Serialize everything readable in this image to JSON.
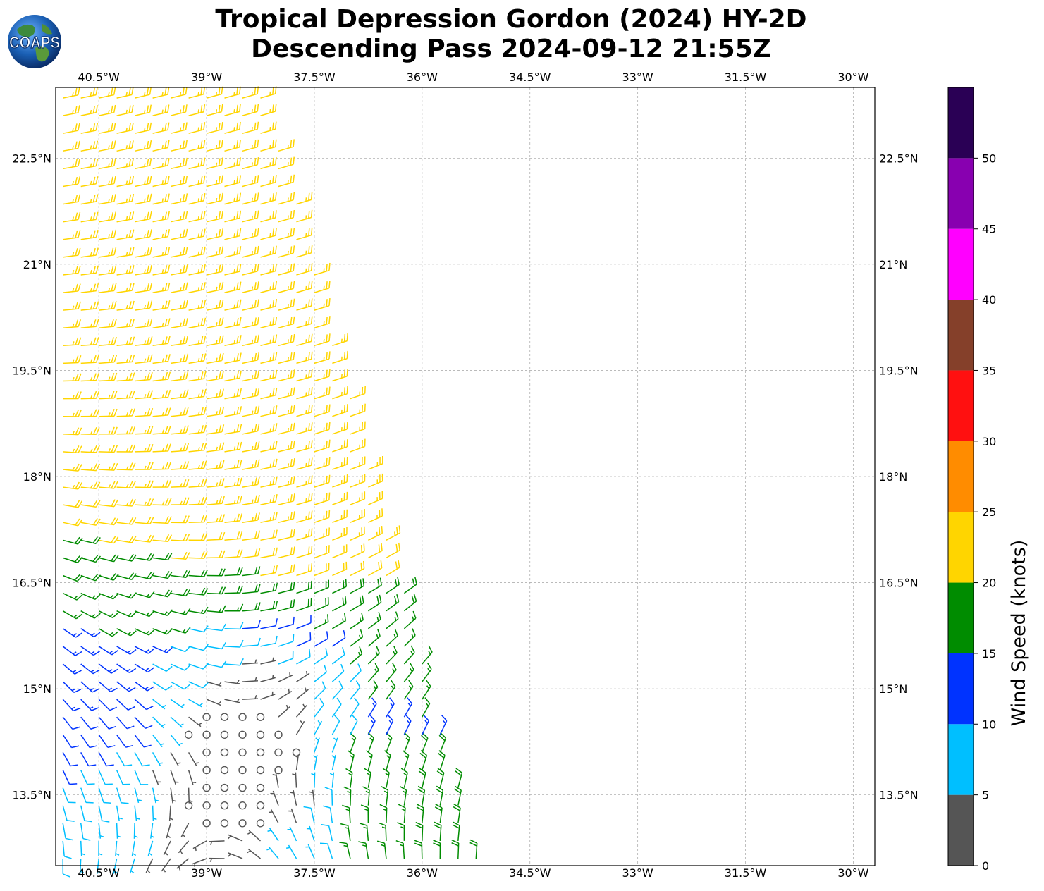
{
  "title": {
    "line1": "Tropical Depression Gordon (2024) HY-2D",
    "line2": "Descending Pass 2024-09-12 21:55Z"
  },
  "logo": {
    "text": "COAPS",
    "icon": "globe-icon"
  },
  "map": {
    "lon_ticks": [
      "40.5°W",
      "39°W",
      "37.5°W",
      "36°W",
      "34.5°W",
      "33°W",
      "31.5°W",
      "30°W"
    ],
    "lat_ticks": [
      "22.5°N",
      "21°N",
      "19.5°N",
      "18°N",
      "16.5°N",
      "15°N",
      "13.5°N"
    ],
    "lon_range": [
      -41.1,
      -29.7
    ],
    "lat_range": [
      12.5,
      23.5
    ],
    "grid": true,
    "center": {
      "lon": -38.4,
      "lat": 14.5
    },
    "swath_right_edge": [
      [
        -38.2,
        23.5
      ],
      [
        -35.2,
        12.5
      ]
    ]
  },
  "colorbar": {
    "label": "Wind Speed (knots)",
    "ticks": [
      "0",
      "5",
      "10",
      "15",
      "20",
      "25",
      "30",
      "35",
      "40",
      "45",
      "50"
    ],
    "bins": [
      {
        "min": 0,
        "max": 5,
        "color": "#555555"
      },
      {
        "min": 5,
        "max": 10,
        "color": "#00bfff"
      },
      {
        "min": 10,
        "max": 15,
        "color": "#0033ff"
      },
      {
        "min": 15,
        "max": 20,
        "color": "#008c00"
      },
      {
        "min": 20,
        "max": 25,
        "color": "#ffd500"
      },
      {
        "min": 25,
        "max": 30,
        "color": "#ff8c00"
      },
      {
        "min": 30,
        "max": 35,
        "color": "#ff1010"
      },
      {
        "min": 35,
        "max": 40,
        "color": "#85402a"
      },
      {
        "min": 40,
        "max": 45,
        "color": "#ff00ff"
      },
      {
        "min": 45,
        "max": 50,
        "color": "#8800b0"
      },
      {
        "min": 50,
        "max": 55,
        "color": "#2a0055"
      }
    ]
  }
}
